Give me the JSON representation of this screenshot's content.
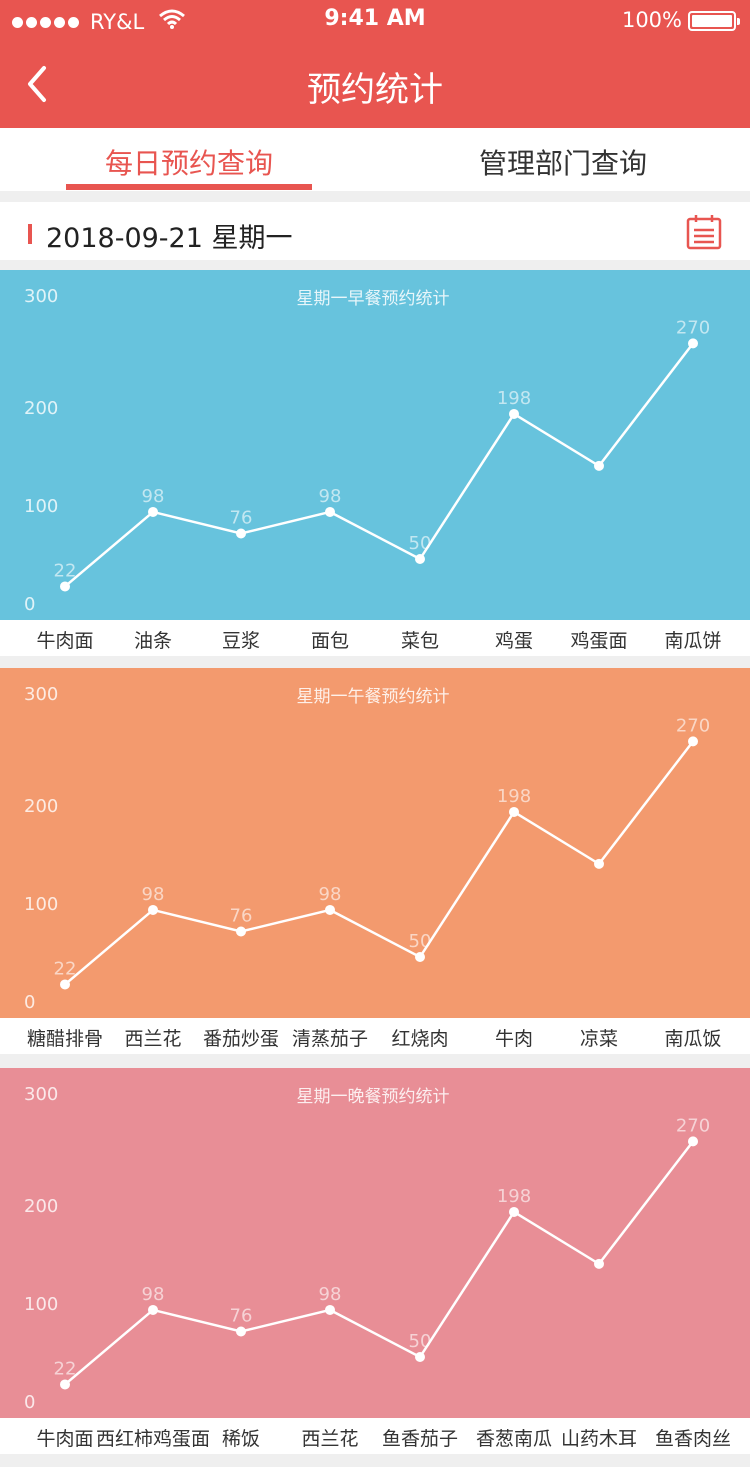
{
  "status": {
    "carrier": "RY&L",
    "time": "9:41 AM",
    "battery": "100%"
  },
  "nav": {
    "title": "预约统计"
  },
  "tabs": [
    {
      "label": "每日预约查询"
    },
    {
      "label": "管理部门查询"
    }
  ],
  "date_bar": {
    "date": "2018-09-21 星期一"
  },
  "colors": {
    "primary": "#e85550",
    "breakfast": "#67c3dd",
    "lunch": "#f39a6e",
    "dinner": "#e88e96"
  },
  "icons": [
    "back-arrow-icon",
    "wifi-icon",
    "battery-icon",
    "calendar-icon"
  ],
  "chart_data": [
    {
      "type": "line",
      "title": "星期一早餐预约统计",
      "categories": [
        "牛肉面",
        "油条",
        "豆浆",
        "面包",
        "菜包",
        "鸡蛋",
        "鸡蛋面",
        "南瓜饼"
      ],
      "values": [
        22,
        98,
        76,
        98,
        50,
        198,
        145,
        270
      ],
      "labels": [
        "22",
        "98",
        "76",
        "98",
        "50",
        "198",
        "",
        "270"
      ],
      "yticks": [
        "300",
        "200",
        "100",
        "0"
      ],
      "ylim": [
        0,
        300
      ]
    },
    {
      "type": "line",
      "title": "星期一午餐预约统计",
      "categories": [
        "糖醋排骨",
        "西兰花",
        "番茄炒蛋",
        "清蒸茄子",
        "红烧肉",
        "牛肉",
        "凉菜",
        "南瓜饭"
      ],
      "values": [
        22,
        98,
        76,
        98,
        50,
        198,
        145,
        270
      ],
      "labels": [
        "22",
        "98",
        "76",
        "98",
        "50",
        "198",
        "",
        "270"
      ],
      "yticks": [
        "300",
        "200",
        "100",
        "0"
      ],
      "ylim": [
        0,
        300
      ]
    },
    {
      "type": "line",
      "title": "星期一晚餐预约统计",
      "categories": [
        "牛肉面",
        "西红柿鸡蛋面",
        "稀饭",
        "西兰花",
        "鱼香茄子",
        "香葱南瓜",
        "山药木耳",
        "鱼香肉丝"
      ],
      "values": [
        22,
        98,
        76,
        98,
        50,
        198,
        145,
        270
      ],
      "labels": [
        "22",
        "98",
        "76",
        "98",
        "50",
        "198",
        "",
        "270"
      ],
      "yticks": [
        "300",
        "200",
        "100",
        "0"
      ],
      "ylim": [
        0,
        300
      ]
    }
  ]
}
